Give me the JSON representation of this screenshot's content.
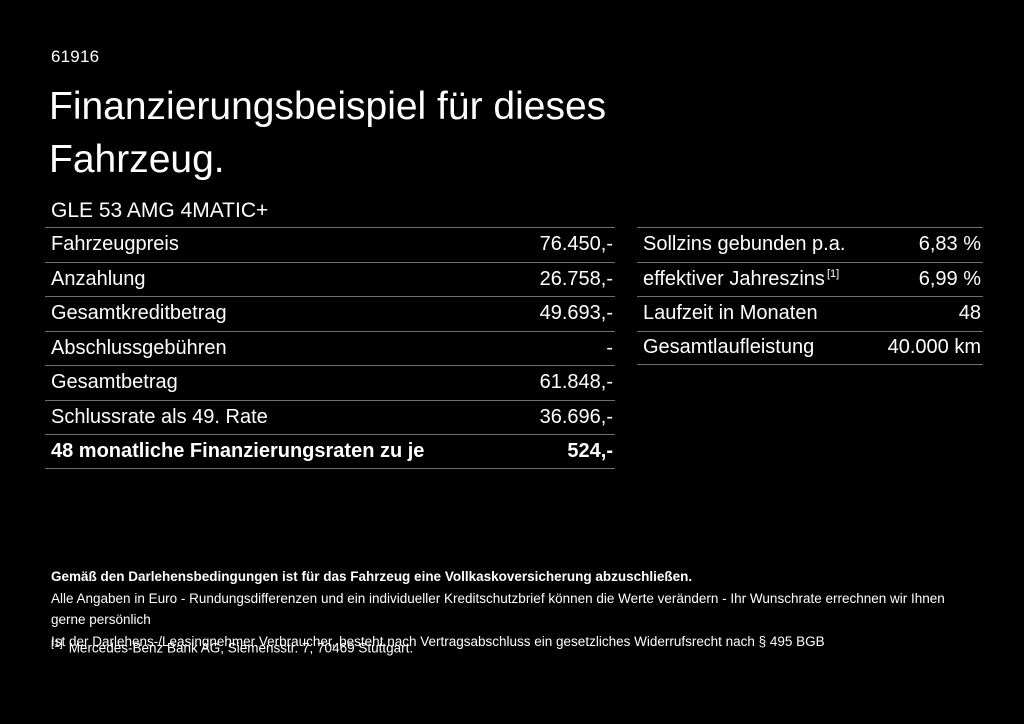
{
  "page": {
    "background_color": "#000000",
    "text_color": "#ffffff",
    "divider_color": "#707070"
  },
  "header": {
    "doc_number": "61916",
    "title": "Finanzierungsbeispiel für dieses Fahrzeug.",
    "vehicle_model": "GLE 53 AMG 4MATIC+"
  },
  "financing_table": {
    "rows": [
      {
        "label": "Fahrzeugpreis",
        "value": "76.450,-"
      },
      {
        "label": "Anzahlung",
        "value": "26.758,-"
      },
      {
        "label": "Gesamtkreditbetrag",
        "value": "49.693,-"
      },
      {
        "label": "Abschlussgebühren",
        "value": "-"
      },
      {
        "label": "Gesamtbetrag",
        "value": "61.848,-"
      },
      {
        "label": "Schlussrate als 49. Rate",
        "value": "36.696,-"
      },
      {
        "label": "48 monatliche Finanzierungsraten zu je",
        "value": "524,-",
        "bold": true
      }
    ]
  },
  "conditions_table": {
    "rows": [
      {
        "label": "Sollzins gebunden p.a.",
        "value": "6,83 %"
      },
      {
        "label": "effektiver Jahreszins",
        "sup": "[1]",
        "value": "6,99 %"
      },
      {
        "label": "Laufzeit in Monaten",
        "value": "48"
      },
      {
        "label": "Gesamtlaufleistung",
        "value": "40.000 km"
      }
    ]
  },
  "legal": {
    "line_bold": "Gemäß den Darlehensbedingungen ist für das Fahrzeug eine Vollkaskoversicherung abzuschließen.",
    "line2": "Alle Angaben in Euro - Rundungsdifferenzen und ein individueller Kreditschutzbrief können die Werte verändern - Ihr Wunschrate errechnen wir Ihnen gerne persönlich",
    "line3": "Ist der Darlehens-/Leasingnehmer Verbraucher, besteht nach Vertragsabschluss ein gesetzliches Widerrufsrecht nach § 495 BGB",
    "footnote_marker": "[1]",
    "footnote_text": "Mercedes-Benz Bank AG, Siemensstr. 7, 70469 Stuttgart."
  }
}
